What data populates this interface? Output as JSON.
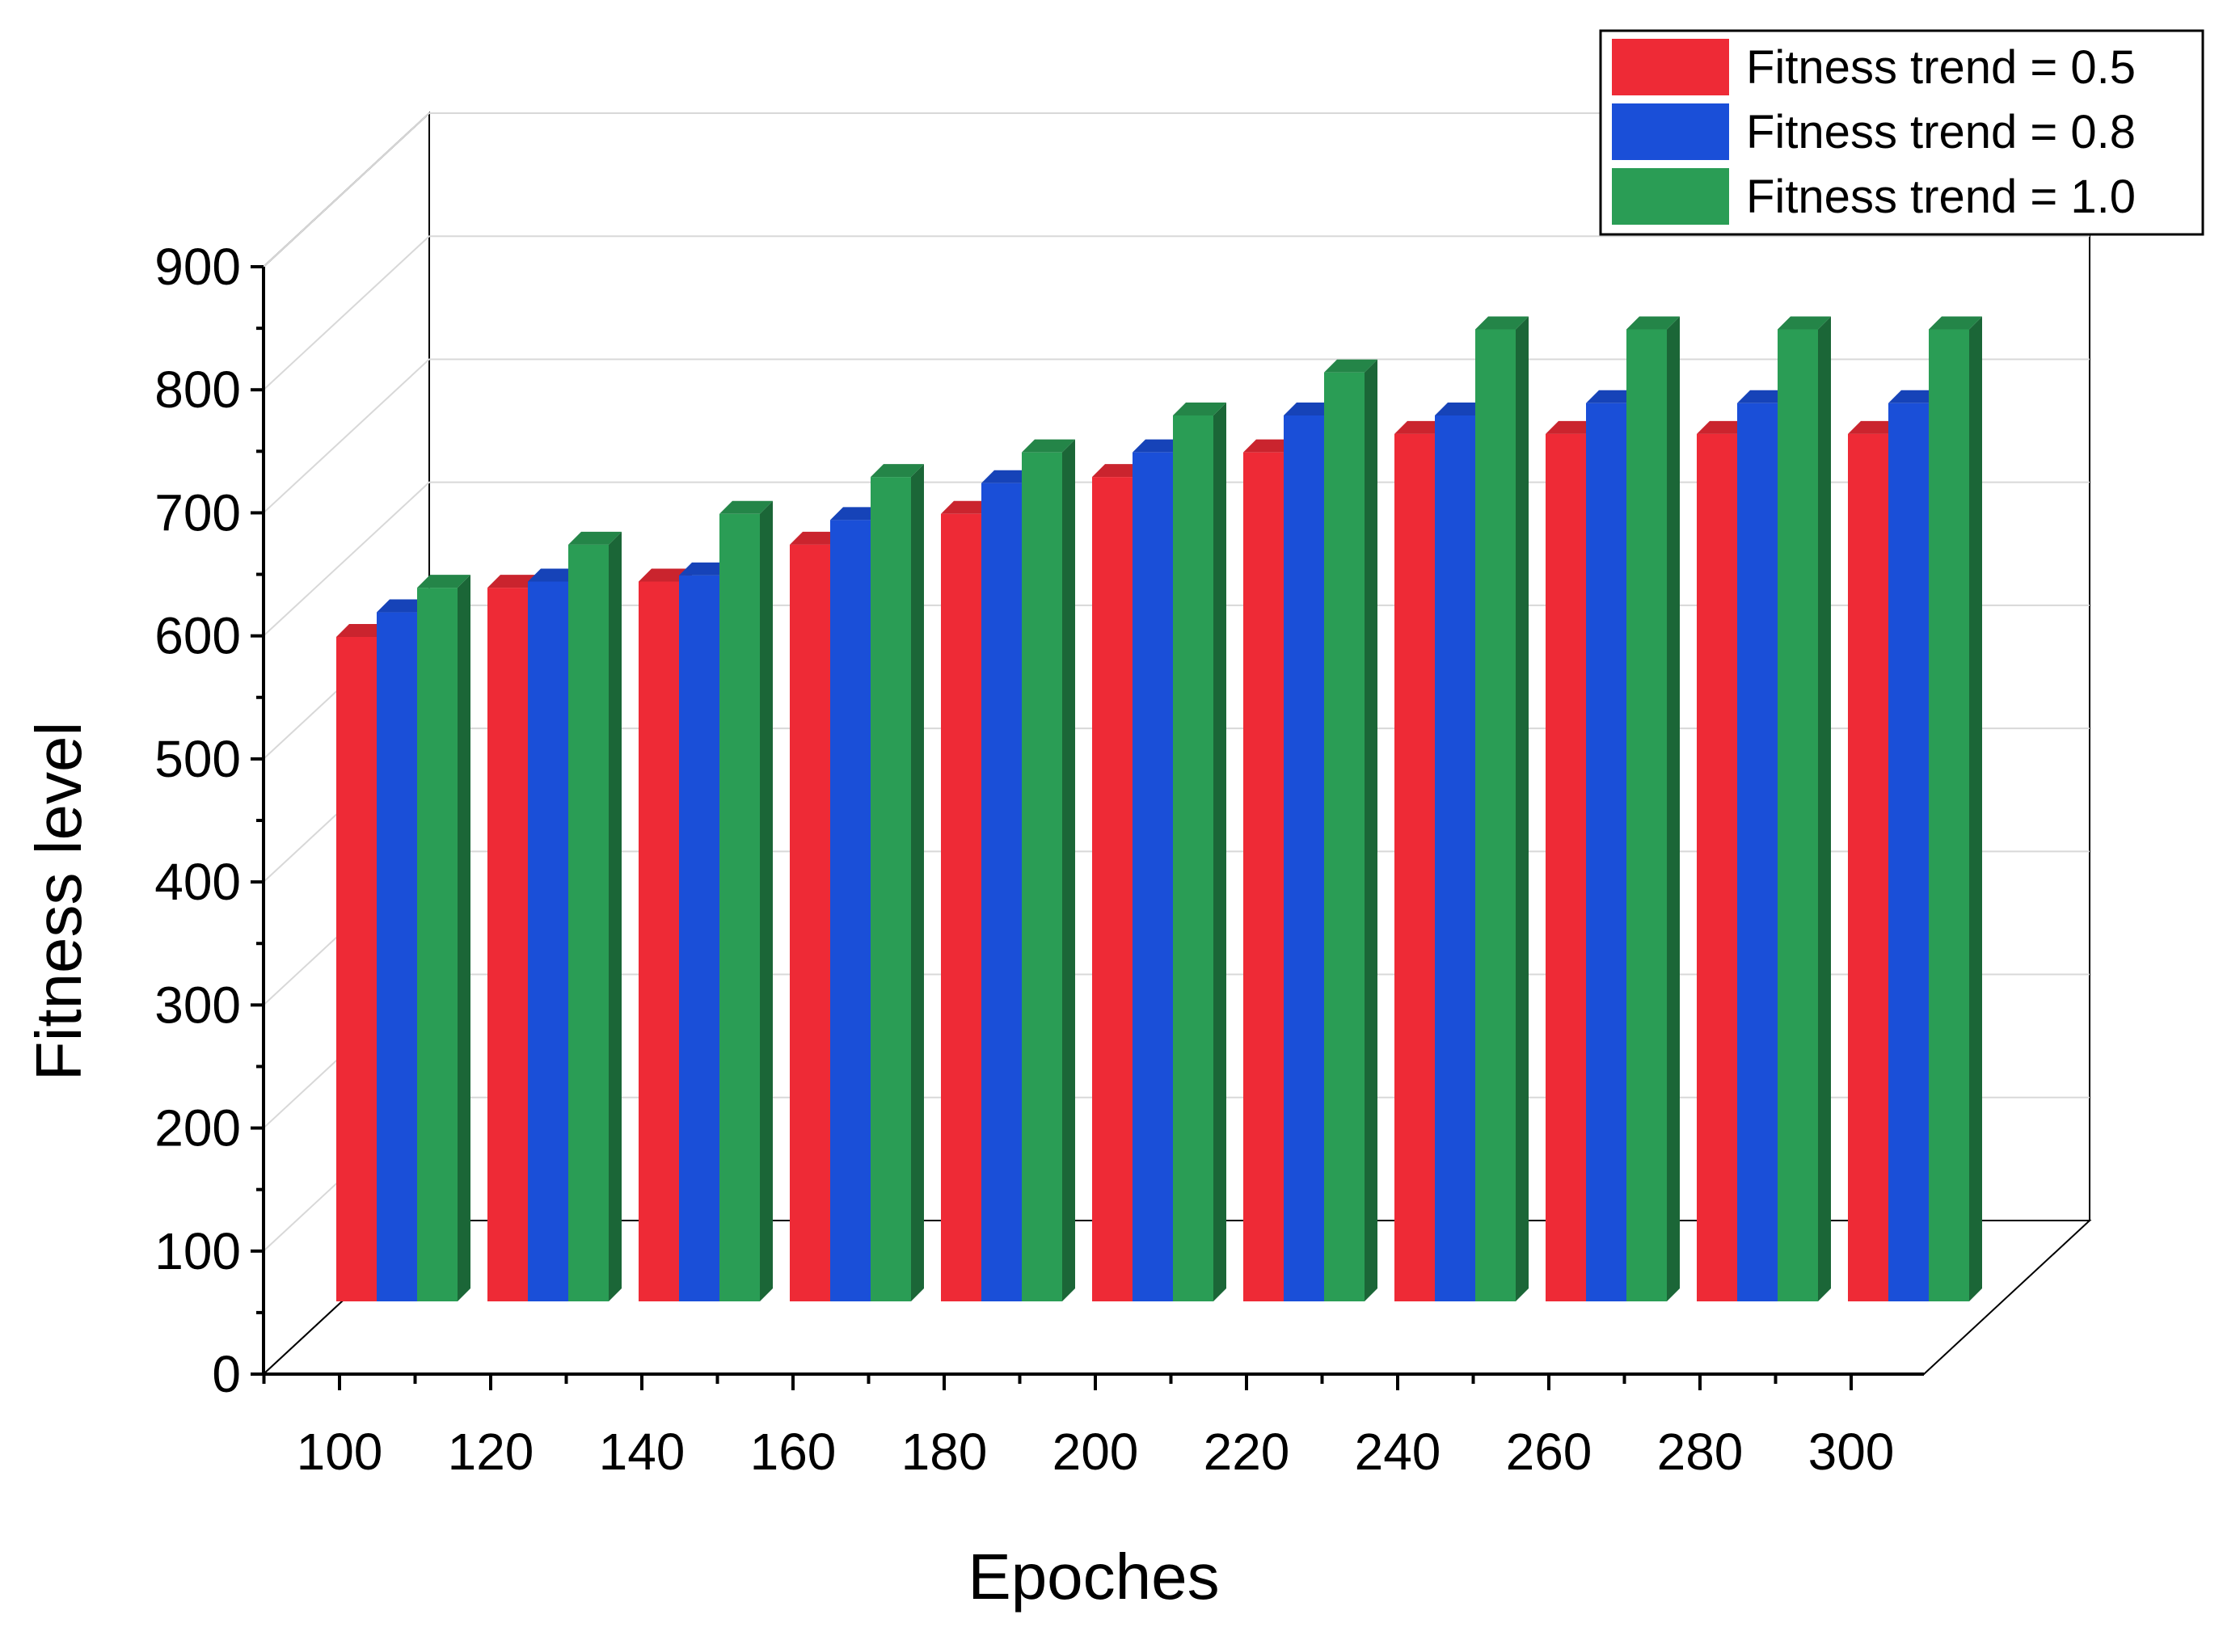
{
  "chart_data": {
    "type": "bar",
    "style": "3d-clustered",
    "xlabel": "Epoches",
    "ylabel": "Fitness level",
    "ylim": [
      0,
      900
    ],
    "yticks": [
      0,
      100,
      200,
      300,
      400,
      500,
      600,
      700,
      800,
      900
    ],
    "categories": [
      "100",
      "120",
      "140",
      "160",
      "180",
      "200",
      "220",
      "240",
      "260",
      "280",
      "300"
    ],
    "series": [
      {
        "name": "Fitness trend = 0.5",
        "color": "#ee2a36",
        "values": [
          540,
          580,
          585,
          615,
          640,
          670,
          690,
          705,
          705,
          705,
          705
        ]
      },
      {
        "name": "Fitness trend = 0.8",
        "color": "#1a4fd8",
        "values": [
          560,
          585,
          590,
          635,
          665,
          690,
          720,
          720,
          730,
          730,
          730
        ]
      },
      {
        "name": "Fitness trend = 1.0",
        "color": "#2a9d55",
        "values": [
          580,
          615,
          640,
          670,
          690,
          720,
          755,
          790,
          790,
          790,
          790
        ]
      }
    ],
    "grid": true,
    "legend_position": "top-right"
  }
}
